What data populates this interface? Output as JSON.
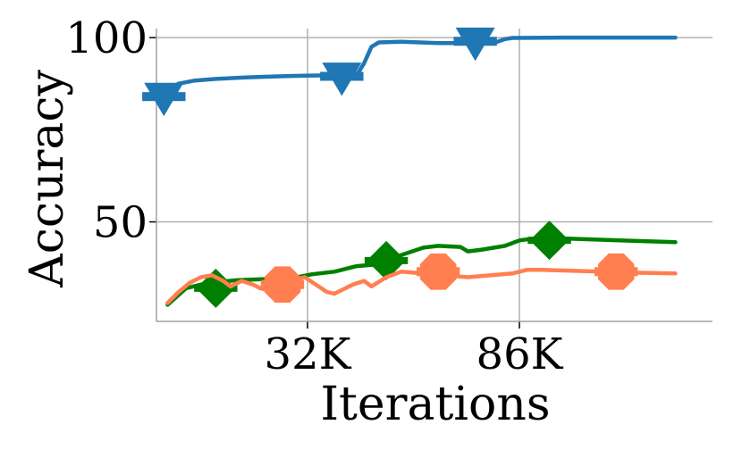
{
  "chart_data": {
    "type": "line",
    "xlabel": "Iterations",
    "ylabel": "Accuracy",
    "x_ticks": [
      "32K",
      "86K"
    ],
    "y_ticks": [
      50,
      100
    ],
    "ylim": [
      23,
      101
    ],
    "grid": true,
    "legend": "none",
    "series": [
      {
        "color": "#1f77b4",
        "marker": "triangle-down",
        "points": [
          [
            3,
            86
          ],
          [
            6,
            87.5
          ],
          [
            10,
            88.3
          ],
          [
            16,
            88.8
          ],
          [
            24,
            89.2
          ],
          [
            30,
            89.4
          ],
          [
            36,
            89.6
          ],
          [
            42,
            89.7
          ],
          [
            48,
            89.8
          ],
          [
            54,
            89.8
          ],
          [
            56,
            93
          ],
          [
            58,
            97.5
          ],
          [
            60,
            98.7
          ],
          [
            66,
            98.9
          ],
          [
            76,
            98.5
          ],
          [
            86,
            98.5
          ],
          [
            92,
            98.9
          ],
          [
            94,
            99.6
          ],
          [
            96,
            99.9
          ],
          [
            110,
            100
          ],
          [
            140,
            100
          ]
        ],
        "markers": [
          [
            2,
            84
          ],
          [
            50,
            89.5
          ],
          [
            86,
            99
          ]
        ]
      },
      {
        "color": "#008000",
        "marker": "diamond",
        "points": [
          [
            3,
            27.5
          ],
          [
            8,
            32
          ],
          [
            14,
            33.5
          ],
          [
            22,
            34.2
          ],
          [
            30,
            34.5
          ],
          [
            38,
            35
          ],
          [
            42,
            35.8
          ],
          [
            48,
            36.5
          ],
          [
            54,
            38
          ],
          [
            60,
            38.5
          ],
          [
            66,
            41
          ],
          [
            72,
            43
          ],
          [
            76,
            43.5
          ],
          [
            82,
            43.2
          ],
          [
            84,
            42
          ],
          [
            88,
            42.5
          ],
          [
            94,
            43.5
          ],
          [
            98,
            45
          ],
          [
            102,
            45.5
          ],
          [
            110,
            45.5
          ],
          [
            125,
            45
          ],
          [
            140,
            44.5
          ]
        ],
        "markers": [
          [
            16,
            32
          ],
          [
            62,
            39.5
          ],
          [
            106,
            45
          ]
        ]
      },
      {
        "color": "#ff7f50",
        "marker": "circle",
        "points": [
          [
            3,
            28
          ],
          [
            6,
            31
          ],
          [
            9,
            33.5
          ],
          [
            12,
            35
          ],
          [
            15,
            35.5
          ],
          [
            18,
            34
          ],
          [
            20,
            32.5
          ],
          [
            23,
            34
          ],
          [
            26,
            33
          ],
          [
            28,
            32
          ],
          [
            30,
            31.5
          ],
          [
            33,
            32.5
          ],
          [
            36,
            34
          ],
          [
            40,
            35
          ],
          [
            43,
            33
          ],
          [
            46,
            31
          ],
          [
            48,
            30.5
          ],
          [
            50,
            31.5
          ],
          [
            53,
            33
          ],
          [
            56,
            34
          ],
          [
            58,
            32.5
          ],
          [
            62,
            35
          ],
          [
            66,
            36.5
          ],
          [
            72,
            36
          ],
          [
            78,
            35.5
          ],
          [
            84,
            35
          ],
          [
            90,
            35.5
          ],
          [
            96,
            36
          ],
          [
            100,
            37
          ],
          [
            104,
            37
          ],
          [
            110,
            36.8
          ],
          [
            120,
            36.5
          ],
          [
            130,
            36.2
          ],
          [
            140,
            36
          ]
        ],
        "markers": [
          [
            34,
            33
          ],
          [
            76,
            36.5
          ],
          [
            124,
            36.5
          ]
        ]
      }
    ]
  }
}
